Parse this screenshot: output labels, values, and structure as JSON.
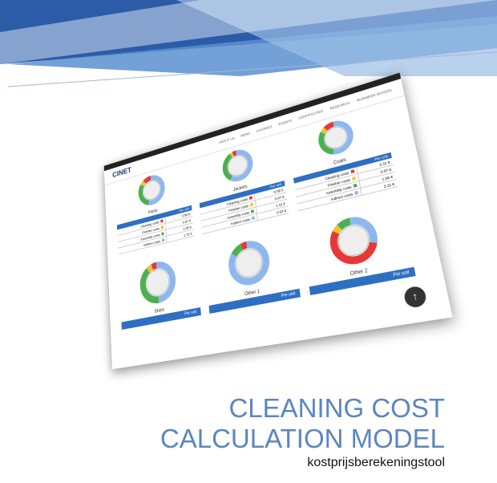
{
  "screenshot": {
    "logo": "CINET",
    "menu": [
      "ABOUT US",
      "NEWS",
      "COURSES",
      "EVENTS",
      "CERTIFICATES",
      "RESEARCH",
      "BUSINESS SCHOOL"
    ],
    "products": [
      {
        "name": "Pants",
        "header": "Per unit",
        "rows": [
          [
            "Cleaning costs",
            "0.00 €"
          ],
          [
            "Finisher costs",
            "0.07 €"
          ],
          [
            "Assembly costs",
            "1.00 €"
          ],
          [
            "Indirect costs",
            "1.72 €"
          ]
        ]
      },
      {
        "name": "Jackets",
        "header": "Per unit",
        "rows": [
          [
            "Cleaning costs",
            "0.06 €"
          ],
          [
            "Finisher costs",
            "0.07 €"
          ],
          [
            "Assembly costs",
            "1.11 €"
          ],
          [
            "Indirect costs",
            "0.53 €"
          ]
        ]
      },
      {
        "name": "Coats",
        "header": "Per unit",
        "rows": [
          [
            "Cleaning costs",
            "0.11 €"
          ],
          [
            "Finisher costs",
            "0.97 €"
          ],
          [
            "Assembly costs",
            "1.56 €"
          ],
          [
            "Indirect costs",
            "3.11 €"
          ]
        ]
      }
    ],
    "lower": [
      {
        "name": "Shirts",
        "header": "Per unit"
      },
      {
        "name": "Other 1",
        "header": "Per unit"
      },
      {
        "name": "Other 2",
        "header": "Per unit"
      }
    ]
  },
  "title": {
    "line1": "CLEANING COST",
    "line2": "CALCULATION MODEL",
    "subtitle": "kostprijsberekeningstool"
  }
}
